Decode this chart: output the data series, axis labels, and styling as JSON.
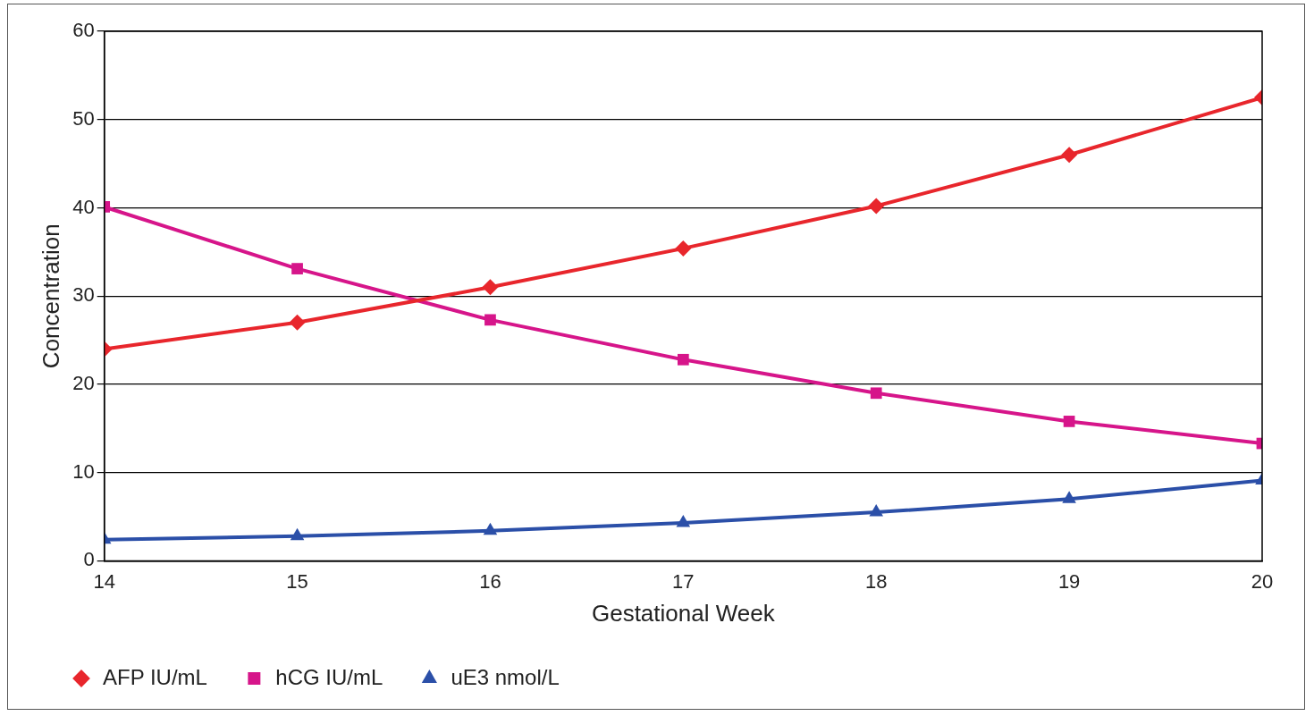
{
  "chart_data": {
    "type": "line",
    "xlabel": "Gestational Week",
    "ylabel": "Concentration",
    "x": [
      14,
      15,
      16,
      17,
      18,
      19,
      20
    ],
    "xlim": [
      14,
      20
    ],
    "xticks": [
      14,
      15,
      16,
      17,
      18,
      19,
      20
    ],
    "ylim": [
      0,
      60
    ],
    "yticks": [
      0,
      10,
      20,
      30,
      40,
      50,
      60
    ],
    "grid": "y",
    "legend": "bottom",
    "line_style": "solid",
    "series": [
      {
        "name": "AFP IU/mL",
        "color": "#e8262c",
        "marker": "diamond",
        "values": [
          24,
          27,
          31,
          35.4,
          40.2,
          46,
          52.5
        ]
      },
      {
        "name": "hCG IU/mL",
        "color": "#d6158a",
        "marker": "square",
        "values": [
          40.1,
          33.1,
          27.3,
          22.8,
          19,
          15.8,
          13.3
        ]
      },
      {
        "name": "uE3 nmol/L",
        "color": "#2b4fa8",
        "marker": "triangle",
        "values": [
          2.4,
          2.8,
          3.4,
          4.3,
          5.5,
          7,
          9.1
        ]
      }
    ]
  }
}
